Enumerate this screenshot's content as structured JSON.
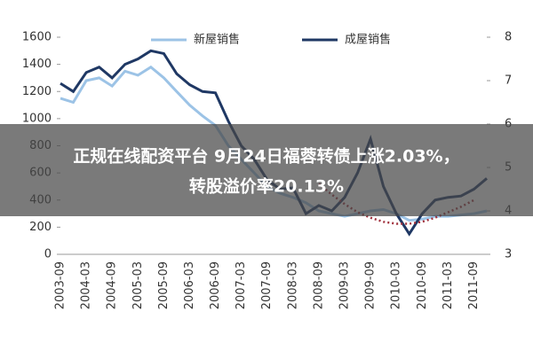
{
  "chart_data": {
    "type": "line",
    "banner": [
      "正规在线配资平台 9月24日福蓉转债上涨2.03%，",
      "转股溢价率20.13%"
    ],
    "categories": [
      "2003-09",
      null,
      "2004-03",
      null,
      "2004-09",
      null,
      "2005-03",
      null,
      "2005-09",
      null,
      "2006-03",
      null,
      "2006-09",
      null,
      "2007-03",
      null,
      "2007-09",
      null,
      "2008-03",
      null,
      "2008-09",
      null,
      "2009-03",
      null,
      "2009-09",
      null,
      "2010-03",
      null,
      "2010-09",
      null,
      "2011-03",
      null,
      "2011-09",
      null
    ],
    "series": [
      {
        "name": "新屋销售",
        "color": "#9cc3e6",
        "values": [
          1150,
          1120,
          1280,
          1300,
          1240,
          1350,
          1320,
          1380,
          1300,
          1200,
          1100,
          1020,
          950,
          800,
          700,
          600,
          500,
          450,
          420,
          380,
          320,
          300,
          280,
          300,
          320,
          330,
          300,
          250,
          260,
          280,
          280,
          290,
          300,
          320
        ]
      },
      {
        "name": "成屋销售",
        "color": "#1f3864",
        "values": [
          1260,
          1200,
          1340,
          1380,
          1300,
          1400,
          1440,
          1500,
          1480,
          1330,
          1250,
          1200,
          1190,
          980,
          800,
          700,
          550,
          480,
          490,
          300,
          360,
          320,
          420,
          600,
          850,
          500,
          300,
          150,
          300,
          400,
          420,
          430,
          480,
          560
        ]
      },
      {
        "color": "#a0303c",
        "dashed": true,
        "values": [
          null,
          null,
          null,
          null,
          null,
          null,
          null,
          null,
          null,
          null,
          null,
          null,
          null,
          null,
          null,
          null,
          null,
          null,
          null,
          null,
          520,
          440,
          370,
          310,
          270,
          240,
          225,
          225,
          240,
          270,
          310,
          350,
          400,
          null
        ]
      }
    ],
    "ylim": [
      0,
      1600
    ],
    "yticks": [
      0,
      200,
      400,
      600,
      800,
      1000,
      1200,
      1400,
      1600
    ],
    "y2lim": [
      3,
      8
    ],
    "y2ticks": [
      3,
      4,
      5,
      6,
      7,
      8
    ]
  }
}
